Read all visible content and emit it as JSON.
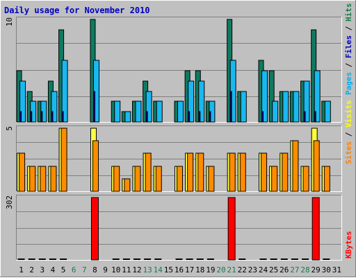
{
  "chart_data": {
    "type": "bar",
    "title": "Daily usage for November 2010",
    "categories": [
      "1",
      "2",
      "3",
      "4",
      "5",
      "6",
      "7",
      "8",
      "9",
      "10",
      "11",
      "12",
      "13",
      "14",
      "15",
      "16",
      "17",
      "18",
      "19",
      "20",
      "21",
      "22",
      "23",
      "24",
      "25",
      "26",
      "27",
      "28",
      "29",
      "30",
      "31"
    ],
    "weekend_days": [
      "6",
      "7",
      "13",
      "14",
      "20",
      "21",
      "27",
      "28"
    ],
    "weekend_color": "#1a7a4c",
    "weekday_color": "#000000",
    "panels": [
      {
        "id": "hits",
        "scale_label": "10",
        "ymax": 10,
        "side_label_parts": [
          "Pages",
          " / ",
          "Files",
          " / ",
          "Hits"
        ],
        "side_label_colors": [
          "#00b0f0",
          "#000000",
          "#0000c0",
          "#000000",
          "#1a7a4c"
        ],
        "series": [
          {
            "name": "Hits",
            "color": "#0f7a60",
            "values": [
              5,
              3,
              2,
              4,
              9,
              0,
              0,
              10,
              0,
              2,
              1,
              2,
              4,
              2,
              0,
              2,
              5,
              5,
              2,
              0,
              10,
              3,
              0,
              6,
              5,
              3,
              3,
              4,
              9,
              2,
              0
            ]
          },
          {
            "name": "Files",
            "color": "#1ab8f0",
            "values": [
              4,
              2,
              2,
              3,
              6,
              0,
              0,
              6,
              0,
              2,
              1,
              2,
              3,
              2,
              0,
              2,
              4,
              4,
              2,
              0,
              6,
              3,
              0,
              5,
              2,
              3,
              3,
              4,
              5,
              2,
              0
            ]
          },
          {
            "name": "Pages",
            "color": "#0000a0",
            "values": [
              1,
              1,
              1,
              1,
              1,
              0,
              0,
              3,
              0,
              0,
              0,
              0,
              1,
              0,
              0,
              0,
              1,
              1,
              1,
              0,
              3,
              0,
              0,
              1,
              0,
              0,
              0,
              1,
              1,
              0,
              0
            ]
          }
        ]
      },
      {
        "id": "visits",
        "scale_label": "5",
        "ymax": 5,
        "side_label_parts": [
          "Sites",
          " / ",
          "Visits"
        ],
        "side_label_colors": [
          "#ff8000",
          "#000000",
          "#ffff00"
        ],
        "series": [
          {
            "name": "Visits",
            "color": "#ffff40",
            "values": [
              3,
              2,
              2,
              2,
              5,
              0,
              0,
              5,
              0,
              2,
              1,
              2,
              3,
              2,
              0,
              2,
              3,
              3,
              2,
              0,
              3,
              3,
              0,
              3,
              2,
              3,
              4,
              2,
              5,
              2,
              0
            ]
          },
          {
            "name": "Sites",
            "color": "#ff8c00",
            "values": [
              3,
              2,
              2,
              2,
              5,
              0,
              0,
              4,
              0,
              2,
              1,
              2,
              3,
              2,
              0,
              2,
              3,
              3,
              2,
              0,
              3,
              3,
              0,
              3,
              2,
              3,
              4,
              2,
              4,
              2,
              0
            ]
          }
        ]
      },
      {
        "id": "kbytes",
        "scale_label": "302",
        "ymax": 302,
        "side_label_parts": [
          "KBytes"
        ],
        "side_label_colors": [
          "#ff0000"
        ],
        "series": [
          {
            "name": "KBytes",
            "color": "#ff0000",
            "values": [
              4,
              4,
              4,
              4,
              4,
              0,
              0,
              302,
              0,
              4,
              4,
              4,
              4,
              4,
              0,
              4,
              4,
              4,
              4,
              0,
              302,
              4,
              0,
              4,
              4,
              4,
              4,
              4,
              302,
              4,
              0
            ]
          }
        ]
      }
    ],
    "grid": true
  }
}
